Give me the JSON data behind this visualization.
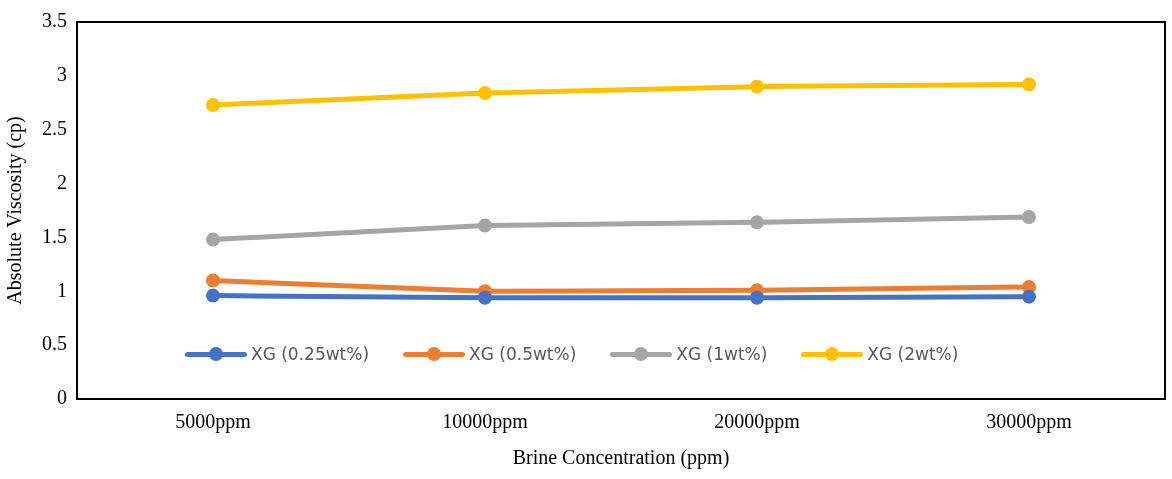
{
  "chart_data": {
    "type": "line",
    "xlabel": "Brine Concentration (ppm)",
    "ylabel": "Absolute Viscosity (cp)",
    "categories": [
      "5000ppm",
      "10000ppm",
      "20000ppm",
      "30000ppm"
    ],
    "series": [
      {
        "name": "XG (0.25wt%)",
        "color": "#4472c4",
        "values": [
          0.96,
          0.94,
          0.94,
          0.95
        ]
      },
      {
        "name": "XG (0.5wt%)",
        "color": "#ed7d31",
        "values": [
          1.1,
          1.0,
          1.01,
          1.04
        ]
      },
      {
        "name": "XG (1wt%)",
        "color": "#a5a5a5",
        "values": [
          1.48,
          1.61,
          1.64,
          1.69
        ]
      },
      {
        "name": "XG (2wt%)",
        "color": "#ffc000",
        "values": [
          2.73,
          2.84,
          2.9,
          2.92
        ]
      }
    ],
    "ylim": [
      0,
      3.5
    ],
    "yticks": [
      0,
      0.5,
      1,
      1.5,
      2,
      2.5,
      3,
      3.5
    ],
    "grid": false,
    "legend": "bottom",
    "marker": "circle",
    "line_style": "solid"
  }
}
